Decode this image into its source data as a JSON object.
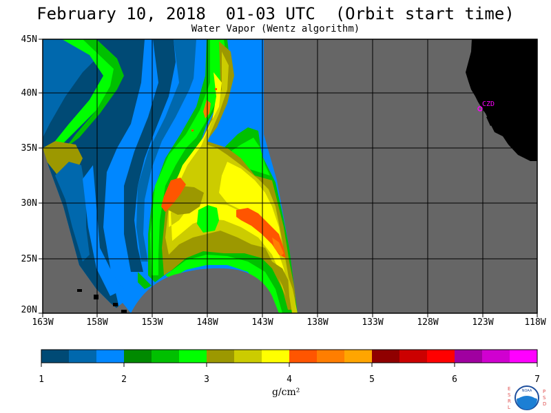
{
  "title": "February 10, 2018  01-03 UTC  (Orbit start time)",
  "subtitle": "Water Vapor (Wentz algorithm)",
  "latitude_labels": [
    "45N",
    "40N",
    "35N",
    "30N",
    "25N",
    "20N"
  ],
  "longitude_labels": [
    "163W",
    "158W",
    "153W",
    "148W",
    "143W",
    "138W",
    "133W",
    "128W",
    "123W",
    "118W"
  ],
  "station_label": "CZD",
  "colorbar": {
    "tick_labels": [
      "1",
      "2",
      "3",
      "4",
      "5",
      "6",
      "7"
    ],
    "units": "g/cm²",
    "colors": [
      "#004a75",
      "#0068ad",
      "#0087ff",
      "#008a00",
      "#00c000",
      "#00ff00",
      "#9c9800",
      "#cccc00",
      "#ffff00",
      "#ff5500",
      "#ff7e00",
      "#ffa500",
      "#900000",
      "#cc0000",
      "#ff0000",
      "#a000a0",
      "#d000d0",
      "#ff00ff"
    ]
  },
  "logo": {
    "left_letters": "ESRL",
    "right_letters": "PSD",
    "text": "NOAA"
  },
  "colors": {
    "no_data": "#666666",
    "land": "#000000",
    "grid": "#000000",
    "station": "#ff00ff"
  }
}
